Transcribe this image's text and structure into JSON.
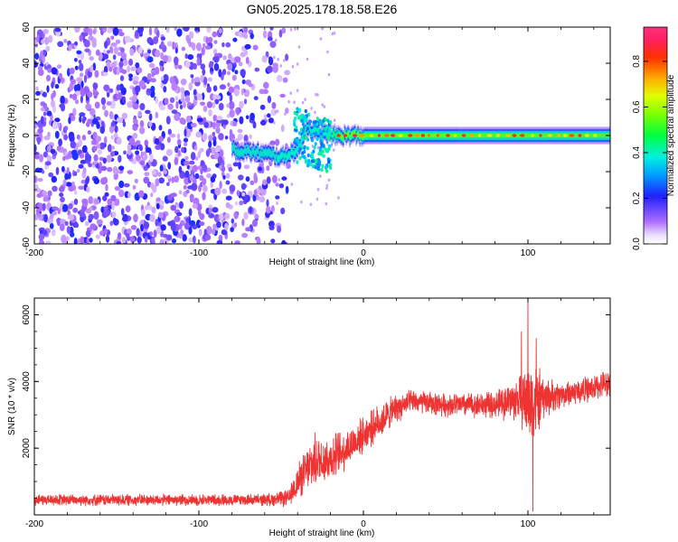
{
  "figure": {
    "title": "GN05.2025.178.18.58.E26"
  },
  "colors": {
    "spectrogram_noise": "#8a2be2",
    "snr_line": "#ee3333",
    "frame": "#000000"
  },
  "chart_data": [
    {
      "type": "heatmap",
      "title": "GN05.2025.178.18.58.E26",
      "xlabel": "Height of straight line (km)",
      "ylabel": "Frequency (Hz)",
      "xlim": [
        -200,
        150
      ],
      "ylim": [
        -60,
        60
      ],
      "xticks": [
        "-200",
        "-100",
        "0",
        "100"
      ],
      "yticks": [
        "60",
        "40",
        "20",
        "0",
        "-20",
        "-40",
        "-60"
      ],
      "colorbar": {
        "label": "Normalized spectral amplitude",
        "range": [
          0.0,
          0.95
        ],
        "ticks": [
          "0.0",
          "0.2",
          "0.4",
          "0.6",
          "0.8"
        ],
        "colormap": "rainbow (violet to red)"
      },
      "features": {
        "noise_region_x": [
          -200,
          -55
        ],
        "noise_typical_amplitude": 0.15,
        "signal_band_x": [
          -80,
          150
        ],
        "signal_center_freq": [
          [
            -80,
            -8
          ],
          [
            -60,
            -10
          ],
          [
            -50,
            -12
          ],
          [
            -40,
            -8
          ],
          [
            -35,
            5
          ],
          [
            -30,
            2
          ],
          [
            -20,
            0
          ],
          [
            0,
            0
          ],
          [
            150,
            0
          ]
        ],
        "signal_band_half_width_hz": 4,
        "peak_amplitude": 0.9
      }
    },
    {
      "type": "line",
      "title": "",
      "xlabel": "Height of straight line (km)",
      "ylabel": "SNR (10 * v/v)",
      "xlim": [
        -200,
        150
      ],
      "ylim": [
        0,
        6500
      ],
      "xticks": [
        "-200",
        "-100",
        "0",
        "100"
      ],
      "yticks": [
        "2000",
        "4000",
        "6000"
      ],
      "series": [
        {
          "name": "",
          "envelope_x": [
            -200,
            -150,
            -100,
            -60,
            -45,
            -40,
            -30,
            -20,
            -10,
            0,
            10,
            20,
            30,
            50,
            80,
            95,
            100,
            105,
            110,
            120,
            140,
            150
          ],
          "envelope_mean": [
            450,
            450,
            450,
            450,
            500,
            1000,
            1600,
            1700,
            2000,
            2400,
            2800,
            3200,
            3400,
            3300,
            3300,
            3500,
            3400,
            3400,
            3500,
            3600,
            3800,
            4000
          ],
          "noise_amplitude": [
            200,
            200,
            200,
            200,
            300,
            600,
            900,
            800,
            700,
            600,
            600,
            500,
            400,
            400,
            450,
            800,
            1500,
            1300,
            700,
            450,
            450,
            450
          ],
          "spikes": [
            {
              "x": 100,
              "y": 6500
            },
            {
              "x": 96,
              "y": 5500
            },
            {
              "x": 105,
              "y": 5300
            },
            {
              "x": 103,
              "y": 100
            }
          ]
        }
      ]
    }
  ]
}
